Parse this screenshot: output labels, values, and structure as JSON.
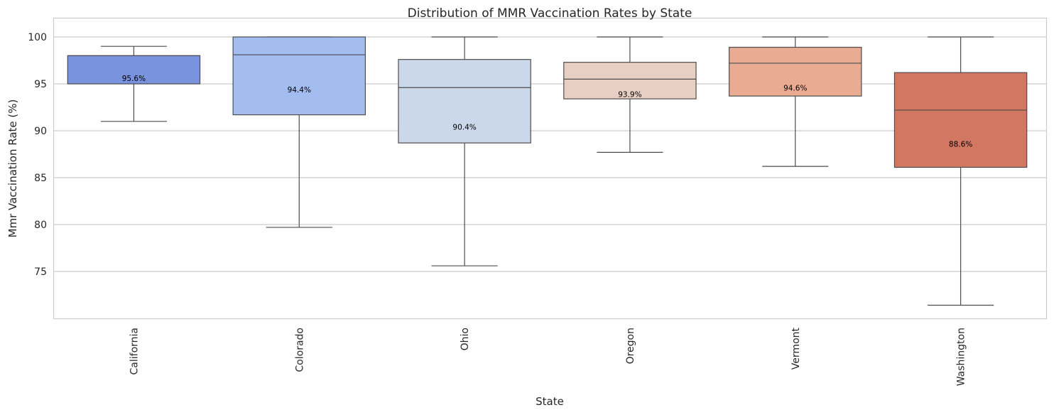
{
  "chart_data": {
    "type": "box",
    "title": "Distribution of MMR Vaccination Rates by State",
    "xlabel": "State",
    "ylabel": "Mmr Vaccination Rate (%)",
    "ylim": [
      70,
      101.5
    ],
    "yticks": [
      75,
      80,
      85,
      90,
      95,
      100
    ],
    "grid": true,
    "categories": [
      "California",
      "Colorado",
      "Ohio",
      "Oregon",
      "Vermont",
      "Washington"
    ],
    "boxes": [
      {
        "category": "California",
        "whisker_low": 91.0,
        "q1": 95.0,
        "median": 98.0,
        "q3": 98.0,
        "whisker_high": 99.0,
        "mean_label": "95.6%",
        "color": "#7a93de"
      },
      {
        "category": "Colorado",
        "whisker_low": 79.7,
        "q1": 91.7,
        "median": 98.1,
        "q3": 100.0,
        "whisker_high": 100.0,
        "mean_label": "94.4%",
        "color": "#a3bdf1"
      },
      {
        "category": "Ohio",
        "whisker_low": 75.6,
        "q1": 88.7,
        "median": 94.6,
        "q3": 97.6,
        "whisker_high": 100.0,
        "mean_label": "90.4%",
        "color": "#cbd7ea"
      },
      {
        "category": "Oregon",
        "whisker_low": 87.7,
        "q1": 93.4,
        "median": 95.5,
        "q3": 97.3,
        "whisker_high": 100.0,
        "mean_label": "93.9%",
        "color": "#e8cfc4"
      },
      {
        "category": "Vermont",
        "whisker_low": 86.2,
        "q1": 93.7,
        "median": 97.2,
        "q3": 98.9,
        "whisker_high": 100.0,
        "mean_label": "94.6%",
        "color": "#e9ac92"
      },
      {
        "category": "Washington",
        "whisker_low": 71.4,
        "q1": 86.1,
        "median": 92.2,
        "q3": 96.2,
        "whisker_high": 100.0,
        "mean_label": "88.6%",
        "color": "#d27762"
      }
    ]
  }
}
